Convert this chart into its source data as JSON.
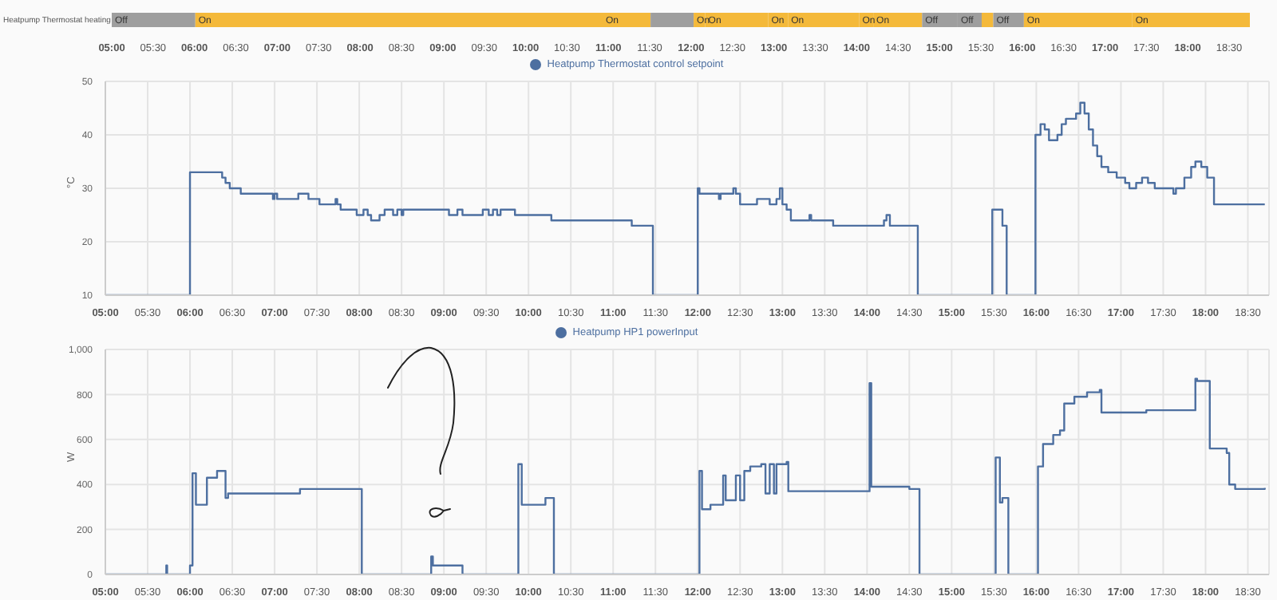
{
  "chart_data": [
    {
      "type": "bar",
      "orientation": "horizontal",
      "categories": [
        "Heatpump Thermostat heating"
      ],
      "series": [
        {
          "color": "#9e9e9e",
          "base": [
            5
          ],
          "values": [
            1.01
          ],
          "value_labels": [
            "Off"
          ]
        },
        {
          "color": "#f4b93a",
          "base": [
            6.01
          ],
          "values": [
            4.92
          ],
          "value_labels": [
            "On"
          ]
        },
        {
          "color": "#f4b93a",
          "base": [
            10.93
          ],
          "values": [
            0.58
          ],
          "value_labels": [
            "On"
          ]
        },
        {
          "color": "#9e9e9e",
          "base": [
            11.51
          ],
          "values": [
            0.52
          ],
          "value_labels": [
            null
          ]
        },
        {
          "color": "#f4b93a",
          "base": [
            12.03
          ],
          "values": [
            0.14
          ],
          "value_labels": [
            "On"
          ]
        },
        {
          "color": "#f4b93a",
          "base": [
            12.17
          ],
          "values": [
            0.76
          ],
          "value_labels": [
            "On"
          ]
        },
        {
          "color": "#f4b93a",
          "base": [
            12.93
          ],
          "values": [
            0.24
          ],
          "value_labels": [
            "On"
          ]
        },
        {
          "color": "#f4b93a",
          "base": [
            13.17
          ],
          "values": [
            0.86
          ],
          "value_labels": [
            "On"
          ]
        },
        {
          "color": "#f4b93a",
          "base": [
            14.03
          ],
          "values": [
            0.17
          ],
          "value_labels": [
            "On"
          ]
        },
        {
          "color": "#f4b93a",
          "base": [
            14.2
          ],
          "values": [
            0.59
          ],
          "value_labels": [
            "On"
          ]
        },
        {
          "color": "#9e9e9e",
          "base": [
            14.79
          ],
          "values": [
            0.43
          ],
          "value_labels": [
            "Off"
          ]
        },
        {
          "color": "#9e9e9e",
          "base": [
            15.22
          ],
          "values": [
            0.29
          ],
          "value_labels": [
            "Off"
          ]
        },
        {
          "color": "#f4b93a",
          "base": [
            15.51
          ],
          "values": [
            0.14
          ],
          "value_labels": [
            null
          ]
        },
        {
          "color": "#9e9e9e",
          "base": [
            15.65
          ],
          "values": [
            0.37
          ],
          "value_labels": [
            "Off"
          ]
        },
        {
          "color": "#f4b93a",
          "base": [
            16.02
          ],
          "values": [
            1.31
          ],
          "value_labels": [
            "On"
          ]
        },
        {
          "color": "#f4b93a",
          "base": [
            17.33
          ],
          "values": [
            1.42
          ],
          "value_labels": [
            "On"
          ]
        }
      ],
      "xlim": [
        5,
        18.75
      ],
      "xticks": [
        {
          "value": 5,
          "label": "05:00"
        },
        {
          "value": 5.5,
          "label": "05:30"
        },
        {
          "value": 6,
          "label": "06:00"
        },
        {
          "value": 6.5,
          "label": "06:30"
        },
        {
          "value": 7,
          "label": "07:00"
        },
        {
          "value": 7.5,
          "label": "07:30"
        },
        {
          "value": 8,
          "label": "08:00"
        },
        {
          "value": 8.5,
          "label": "08:30"
        },
        {
          "value": 9,
          "label": "09:00"
        },
        {
          "value": 9.5,
          "label": "09:30"
        },
        {
          "value": 10,
          "label": "10:00"
        },
        {
          "value": 10.5,
          "label": "10:30"
        },
        {
          "value": 11,
          "label": "11:00"
        },
        {
          "value": 11.5,
          "label": "11:30"
        },
        {
          "value": 12,
          "label": "12:00"
        },
        {
          "value": 12.5,
          "label": "12:30"
        },
        {
          "value": 13,
          "label": "13:00"
        },
        {
          "value": 13.5,
          "label": "13:30"
        },
        {
          "value": 14,
          "label": "14:00"
        },
        {
          "value": 14.5,
          "label": "14:30"
        },
        {
          "value": 15,
          "label": "15:00"
        },
        {
          "value": 15.5,
          "label": "15:30"
        },
        {
          "value": 16,
          "label": "16:00"
        },
        {
          "value": 16.5,
          "label": "16:30"
        },
        {
          "value": 17,
          "label": "17:00"
        },
        {
          "value": 17.5,
          "label": "17:30"
        },
        {
          "value": 18,
          "label": "18:00"
        },
        {
          "value": 18.5,
          "label": "18:30"
        }
      ]
    },
    {
      "type": "step",
      "ylabel": "°C",
      "legend": "top",
      "grid": true,
      "marker": "none",
      "x": [
        5,
        6,
        6.38,
        6.42,
        6.47,
        6.6,
        6.98,
        7,
        7.03,
        7.28,
        7.4,
        7.53,
        7.72,
        7.74,
        7.78,
        7.97,
        8.05,
        8.1,
        8.14,
        8.24,
        8.3,
        8.4,
        8.45,
        8.5,
        8.52,
        9.06,
        9.16,
        9.22,
        9.46,
        9.53,
        9.58,
        9.63,
        9.67,
        9.84,
        10.27,
        11.22,
        11.47,
        12,
        12.02,
        12.25,
        12.27,
        12.42,
        12.45,
        12.5,
        12.7,
        12.85,
        12.93,
        12.97,
        13,
        13.05,
        13.1,
        13.32,
        13.34,
        13.6,
        14.2,
        14.23,
        14.27,
        14.6,
        15.48,
        15.6,
        15.65,
        15.99,
        16.05,
        16.1,
        16.15,
        16.25,
        16.3,
        16.35,
        16.47,
        16.52,
        16.57,
        16.62,
        16.67,
        16.72,
        16.77,
        16.85,
        16.95,
        17.05,
        17.1,
        17.18,
        17.25,
        17.32,
        17.4,
        17.62,
        17.65,
        17.75,
        17.83,
        17.88,
        17.95,
        18.02,
        18.1,
        18.7
      ],
      "series": [
        {
          "name": "Heatpump Thermostat control setpoint",
          "color": "#4d6fa0",
          "values": [
            10,
            33,
            32,
            31,
            30,
            29,
            28,
            29,
            28,
            29,
            28,
            27,
            28,
            27,
            26,
            25,
            26,
            25,
            24,
            25,
            26,
            25,
            26,
            25,
            26,
            25,
            26,
            25,
            26,
            25,
            26,
            25,
            26,
            25,
            24,
            23,
            10,
            30,
            29,
            28,
            29,
            30,
            29,
            27,
            28,
            27,
            28,
            30,
            27,
            26,
            24,
            25,
            24,
            23,
            24,
            25,
            23,
            10,
            26,
            23,
            10,
            40,
            42,
            41,
            39,
            40,
            42,
            43,
            44,
            46,
            44,
            41,
            38,
            36,
            34,
            33,
            32,
            31,
            30,
            31,
            32,
            31,
            30,
            29,
            30,
            32,
            34,
            35,
            34,
            32,
            27,
            27
          ]
        }
      ],
      "ylim": [
        10,
        50
      ],
      "yticks": [
        10,
        20,
        30,
        40,
        50
      ],
      "xlim": [
        5,
        18.75
      ],
      "xticks": [
        {
          "value": 5,
          "label": "05:00"
        },
        {
          "value": 5.5,
          "label": "05:30"
        },
        {
          "value": 6,
          "label": "06:00"
        },
        {
          "value": 6.5,
          "label": "06:30"
        },
        {
          "value": 7,
          "label": "07:00"
        },
        {
          "value": 7.5,
          "label": "07:30"
        },
        {
          "value": 8,
          "label": "08:00"
        },
        {
          "value": 8.5,
          "label": "08:30"
        },
        {
          "value": 9,
          "label": "09:00"
        },
        {
          "value": 9.5,
          "label": "09:30"
        },
        {
          "value": 10,
          "label": "10:00"
        },
        {
          "value": 10.5,
          "label": "10:30"
        },
        {
          "value": 11,
          "label": "11:00"
        },
        {
          "value": 11.5,
          "label": "11:30"
        },
        {
          "value": 12,
          "label": "12:00"
        },
        {
          "value": 12.5,
          "label": "12:30"
        },
        {
          "value": 13,
          "label": "13:00"
        },
        {
          "value": 13.5,
          "label": "13:30"
        },
        {
          "value": 14,
          "label": "14:00"
        },
        {
          "value": 14.5,
          "label": "14:30"
        },
        {
          "value": 15,
          "label": "15:00"
        },
        {
          "value": 15.5,
          "label": "15:30"
        },
        {
          "value": 16,
          "label": "16:00"
        },
        {
          "value": 16.5,
          "label": "16:30"
        },
        {
          "value": 17,
          "label": "17:00"
        },
        {
          "value": 17.5,
          "label": "17:30"
        },
        {
          "value": 18,
          "label": "18:00"
        },
        {
          "value": 18.5,
          "label": "18:30"
        }
      ]
    },
    {
      "type": "step",
      "ylabel": "W",
      "legend": "top",
      "grid": true,
      "marker": "none",
      "x": [
        5,
        5.72,
        5.73,
        6,
        6.03,
        6.07,
        6.2,
        6.32,
        6.42,
        6.45,
        7.3,
        7.98,
        8.03,
        8.85,
        8.87,
        9.22,
        9.88,
        9.92,
        10.2,
        10.3,
        12.02,
        12.05,
        12.15,
        12.3,
        12.33,
        12.45,
        12.5,
        12.55,
        12.62,
        12.75,
        12.8,
        12.85,
        12.9,
        12.93,
        13.05,
        13.07,
        14.03,
        14.05,
        14.5,
        14.62,
        15.52,
        15.57,
        15.6,
        15.67,
        16.02,
        16.08,
        16.2,
        16.28,
        16.33,
        16.45,
        16.6,
        16.75,
        16.77,
        17.3,
        17.88,
        17.9,
        18.05,
        18.25,
        18.28,
        18.35,
        18.7
      ],
      "series": [
        {
          "name": "Heatpump HP1 powerInput",
          "color": "#4d6fa0",
          "values": [
            0,
            40,
            0,
            40,
            450,
            310,
            430,
            460,
            340,
            360,
            380,
            380,
            0,
            80,
            40,
            0,
            490,
            310,
            340,
            0,
            460,
            290,
            310,
            440,
            330,
            440,
            330,
            460,
            480,
            490,
            360,
            490,
            360,
            490,
            500,
            370,
            850,
            390,
            380,
            0,
            520,
            320,
            340,
            0,
            480,
            580,
            620,
            640,
            760,
            790,
            810,
            820,
            720,
            730,
            870,
            860,
            560,
            540,
            400,
            380,
            385
          ]
        }
      ],
      "ylim": [
        0,
        1000
      ],
      "yticks": [
        0,
        200,
        400,
        600,
        800,
        {
          "value": 1000,
          "label": "1,000"
        }
      ],
      "xlim": [
        5,
        18.75
      ],
      "xticks": [
        {
          "value": 5,
          "label": "05:00"
        },
        {
          "value": 5.5,
          "label": "05:30"
        },
        {
          "value": 6,
          "label": "06:00"
        },
        {
          "value": 6.5,
          "label": "06:30"
        },
        {
          "value": 7,
          "label": "07:00"
        },
        {
          "value": 7.5,
          "label": "07:30"
        },
        {
          "value": 8,
          "label": "08:00"
        },
        {
          "value": 8.5,
          "label": "08:30"
        },
        {
          "value": 9,
          "label": "09:00"
        },
        {
          "value": 9.5,
          "label": "09:30"
        },
        {
          "value": 10,
          "label": "10:00"
        },
        {
          "value": 10.5,
          "label": "10:30"
        },
        {
          "value": 11,
          "label": "11:00"
        },
        {
          "value": 11.5,
          "label": "11:30"
        },
        {
          "value": 12,
          "label": "12:00"
        },
        {
          "value": 12.5,
          "label": "12:30"
        },
        {
          "value": 13,
          "label": "13:00"
        },
        {
          "value": 13.5,
          "label": "13:30"
        },
        {
          "value": 14,
          "label": "14:00"
        },
        {
          "value": 14.5,
          "label": "14:30"
        },
        {
          "value": 15,
          "label": "15:00"
        },
        {
          "value": 15.5,
          "label": "15:30"
        },
        {
          "value": 16,
          "label": "16:00"
        },
        {
          "value": 16.5,
          "label": "16:30"
        },
        {
          "value": 17,
          "label": "17:00"
        },
        {
          "value": 17.5,
          "label": "17:30"
        },
        {
          "value": 18,
          "label": "18:00"
        },
        {
          "value": 18.5,
          "label": "18:30"
        }
      ]
    }
  ]
}
